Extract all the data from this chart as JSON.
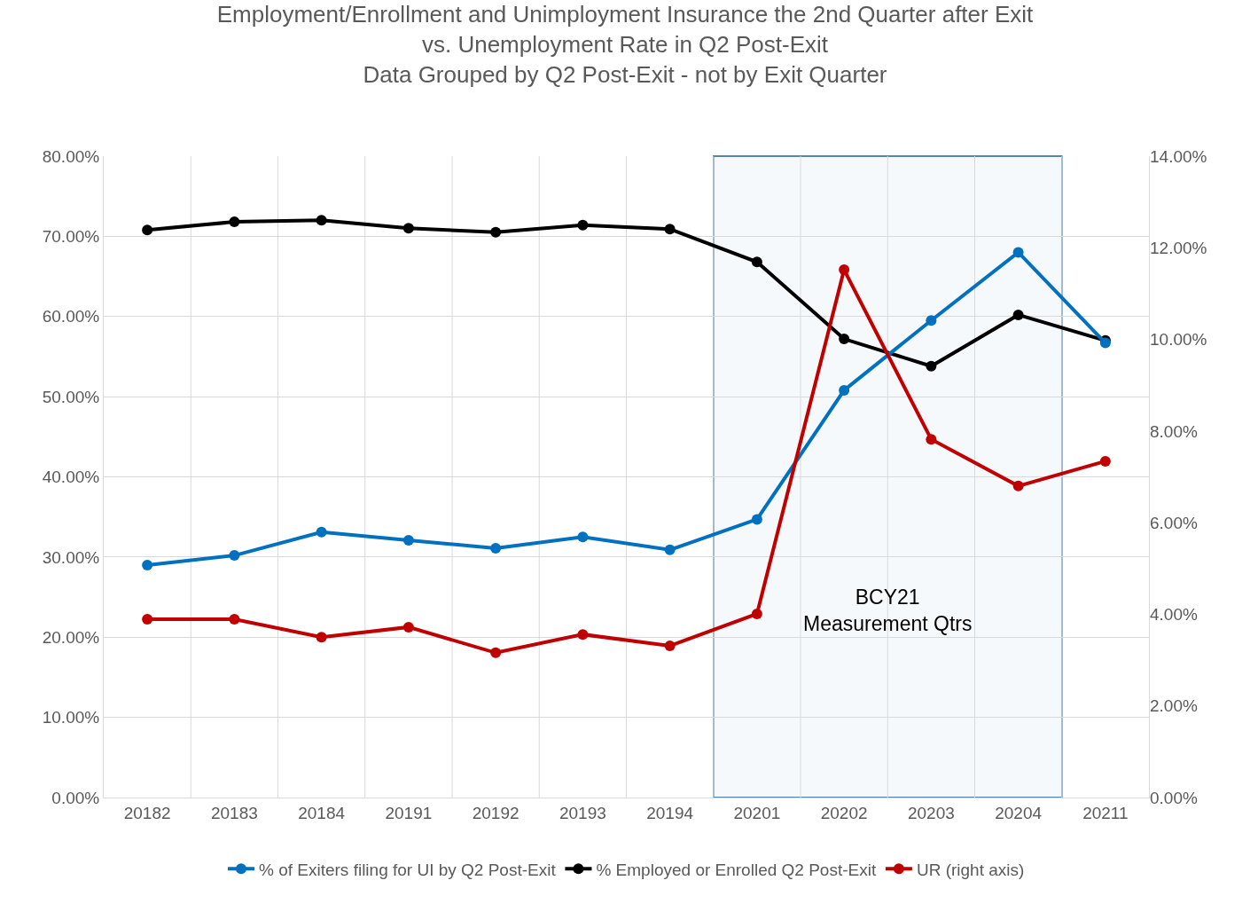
{
  "chart_data": {
    "type": "line",
    "title": "Employment/Enrollment and Unimployment Insurance the 2nd Quarter after Exit\nvs. Unemployment Rate in Q2 Post-Exit\nData Grouped by Q2 Post-Exit - not by Exit Quarter",
    "categories": [
      "20182",
      "20183",
      "20184",
      "20191",
      "20192",
      "20193",
      "20194",
      "20201",
      "20202",
      "20203",
      "20204",
      "20211"
    ],
    "series": [
      {
        "name": "% of Exiters filing for UI by Q2 Post-Exit",
        "color": "#0070c0",
        "values": [
          29.0,
          30.2,
          33.1,
          32.1,
          31.1,
          32.5,
          30.9,
          34.7,
          50.8,
          59.5,
          68.0,
          56.7
        ]
      },
      {
        "name": "% Employed or Enrolled Q2 Post-Exit",
        "color": "#000000",
        "values": [
          70.8,
          71.8,
          72.0,
          71.0,
          70.5,
          71.4,
          70.9,
          66.8,
          57.2,
          53.8,
          60.2,
          57.0
        ]
      },
      {
        "name": "UR (right axis)",
        "color": "#c00000",
        "axis": "y2",
        "values": [
          3.89,
          3.89,
          3.5,
          3.72,
          3.16,
          3.56,
          3.31,
          4.01,
          11.52,
          7.82,
          6.8,
          7.34
        ]
      }
    ],
    "ylim": [
      0,
      80
    ],
    "yticks": [
      {
        "value": 0,
        "label": "0.00%"
      },
      {
        "value": 10,
        "label": "10.00%"
      },
      {
        "value": 20,
        "label": "20.00%"
      },
      {
        "value": 30,
        "label": "30.00%"
      },
      {
        "value": 40,
        "label": "40.00%"
      },
      {
        "value": 50,
        "label": "50.00%"
      },
      {
        "value": 60,
        "label": "60.00%"
      },
      {
        "value": 70,
        "label": "70.00%"
      },
      {
        "value": 80,
        "label": "80.00%"
      }
    ],
    "y2lim": [
      0,
      14
    ],
    "y2ticks": [
      {
        "value": 0,
        "label": "0.00%"
      },
      {
        "value": 2,
        "label": "2.00%"
      },
      {
        "value": 4,
        "label": "4.00%"
      },
      {
        "value": 6,
        "label": "6.00%"
      },
      {
        "value": 8,
        "label": "8.00%"
      },
      {
        "value": 10,
        "label": "10.00%"
      },
      {
        "value": 12,
        "label": "12.00%"
      },
      {
        "value": 14,
        "label": "14.00%"
      }
    ],
    "bands": [
      {
        "axis": "x",
        "from": "20201",
        "to": "20204",
        "label": "BCY21\nMeasurement Qtrs",
        "color": "#1f5f99"
      }
    ],
    "grid": true,
    "legend": "bottom",
    "marker": "circle",
    "line_style": "solid"
  }
}
